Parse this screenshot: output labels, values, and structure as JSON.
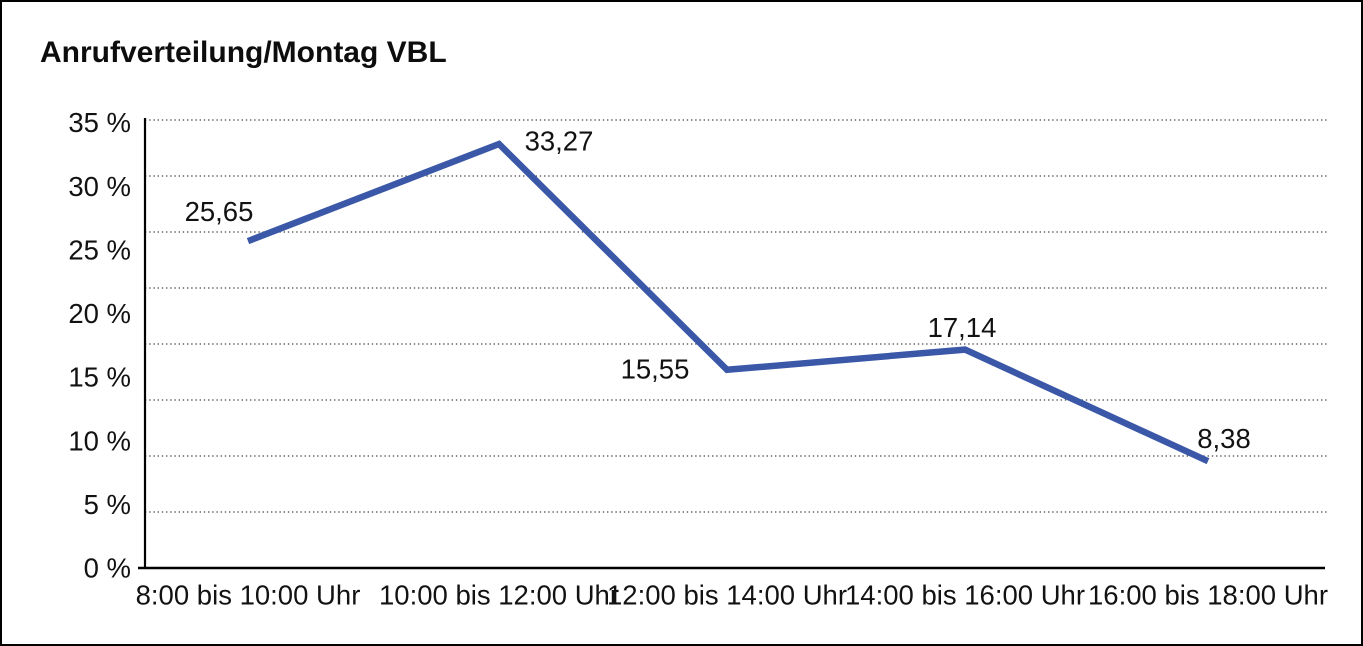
{
  "window": {
    "background_color": "#ffffff",
    "frame_color": "#000000"
  },
  "chart": {
    "title": "Anrufverteilung/Montag VBL",
    "line_color": "#3B58A8",
    "axis_color": "#000000",
    "grid_color": "#434343",
    "text_color": "#121212"
  },
  "chart_data": {
    "type": "line",
    "title": "Anrufverteilung/Montag VBL",
    "categories": [
      "8:00 bis 10:00 Uhr",
      "10:00 bis 12:00 Uhr",
      "12:00 bis 14:00 Uhr",
      "14:00 bis 16:00 Uhr",
      "16:00 bis 18:00 Uhr"
    ],
    "series": [
      {
        "name": "Anrufverteilung Montag VBL",
        "values": [
          25.65,
          33.27,
          15.55,
          17.14,
          8.38
        ],
        "point_labels": [
          "25,65",
          "33,27",
          "15,55",
          "17,14",
          "8,38"
        ]
      }
    ],
    "y_ticks": [
      "0 %",
      "5 %",
      "10 %",
      "15 %",
      "20 %",
      "25 %",
      "30 %",
      "35 %"
    ],
    "ylim": [
      0,
      35
    ],
    "xlabel": "",
    "ylabel": "",
    "grid": "horizontal-dotted",
    "legend": "none",
    "decimal_separator": ","
  }
}
